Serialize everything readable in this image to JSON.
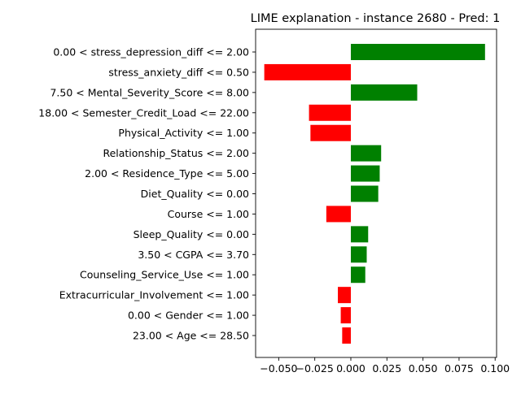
{
  "chart_data": {
    "type": "bar",
    "orientation": "horizontal",
    "title": "LIME explanation - instance 2680 - Pred: 1",
    "xlabel": "",
    "ylabel": "",
    "xlim": [
      -0.066,
      0.101
    ],
    "xticks": [
      -0.05,
      -0.025,
      0.0,
      0.025,
      0.05,
      0.075,
      0.1
    ],
    "xtick_labels": [
      "−0.050",
      "−0.025",
      "0.000",
      "0.025",
      "0.050",
      "0.075",
      "0.100"
    ],
    "grid": false,
    "positive_color": "#008000",
    "negative_color": "#ff0000",
    "categories": [
      "0.00 < stress_depression_diff <= 2.00",
      "stress_anxiety_diff <= 0.50",
      "7.50 < Mental_Severity_Score <= 8.00",
      "18.00 < Semester_Credit_Load <= 22.00",
      "Physical_Activity <= 1.00",
      "Relationship_Status <= 2.00",
      "2.00 < Residence_Type <= 5.00",
      "Diet_Quality <= 0.00",
      "Course <= 1.00",
      "Sleep_Quality <= 0.00",
      "3.50 < CGPA <= 3.70",
      "Counseling_Service_Use <= 1.00",
      "Extracurricular_Involvement <= 1.00",
      "0.00 < Gender <= 1.00",
      "23.00 < Age <= 28.50"
    ],
    "values": [
      0.093,
      -0.06,
      0.046,
      -0.029,
      -0.028,
      0.021,
      0.02,
      0.019,
      -0.017,
      0.012,
      0.011,
      0.01,
      -0.009,
      -0.007,
      -0.006
    ]
  }
}
